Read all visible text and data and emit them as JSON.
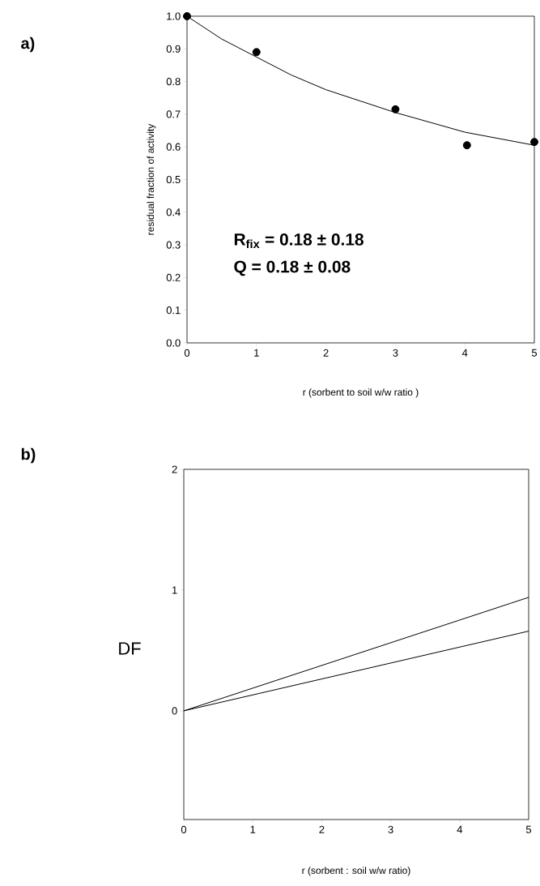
{
  "chart_data": [
    {
      "type": "scatter",
      "xlabel": "r (sorbent to soil w/w ratio )",
      "ylabel": "residual fraction of activity",
      "annotations": [
        "a)",
        "R$_{fix}$ = 0.18 ± 0.18",
        "Q      = 0.18 ± 0.08"
      ],
      "xlim": [
        0,
        5
      ],
      "ylim": [
        0,
        1
      ],
      "xticks": [
        0,
        1,
        2,
        3,
        4,
        5
      ],
      "yticks": [
        {
          "value": 0,
          "label": "0.0"
        },
        {
          "value": 0.1,
          "label": "0.1"
        },
        {
          "value": 0.2,
          "label": "0.2"
        },
        {
          "value": 0.3,
          "label": "0.3"
        },
        {
          "value": 0.4,
          "label": "0.4"
        },
        {
          "value": 0.5,
          "label": "0.5"
        },
        {
          "value": 0.6,
          "label": "0.6"
        },
        {
          "value": 0.7,
          "label": "0.7"
        },
        {
          "value": 0.8,
          "label": "0.8"
        },
        {
          "value": 0.9,
          "label": "0.9"
        },
        {
          "value": 1,
          "label": "1.0"
        }
      ],
      "grid": false,
      "series": [
        {
          "type": "scatter",
          "marker": "circle",
          "color": "#000000",
          "x": [
            0,
            1,
            3,
            4.03,
            5
          ],
          "values": [
            1.0,
            0.89,
            0.715,
            0.605,
            0.615
          ]
        },
        {
          "type": "line",
          "marker": "none",
          "color": "#000000",
          "x": [
            0,
            0.5,
            1,
            1.5,
            2,
            2.5,
            3,
            3.5,
            4,
            4.5,
            5
          ],
          "values": [
            1.0,
            0.93,
            0.875,
            0.82,
            0.775,
            0.74,
            0.705,
            0.675,
            0.645,
            0.625,
            0.605
          ]
        }
      ]
    },
    {
      "type": "line",
      "xlabel": "r (sorbent : soil w/w ratio)",
      "ylabel": "DF",
      "annotations": [
        "b)"
      ],
      "xlim": [
        0,
        5
      ],
      "ylim": [
        -0.9,
        2
      ],
      "xticks": [
        0,
        1,
        2,
        3,
        4,
        5
      ],
      "yticks": [
        0,
        1,
        2
      ],
      "grid": false,
      "marker": "none",
      "series": [
        {
          "color": "#000000",
          "x": [
            0,
            5
          ],
          "values": [
            0,
            0.94
          ]
        },
        {
          "color": "#000000",
          "x": [
            0,
            5
          ],
          "values": [
            0,
            0.66
          ]
        }
      ]
    }
  ]
}
